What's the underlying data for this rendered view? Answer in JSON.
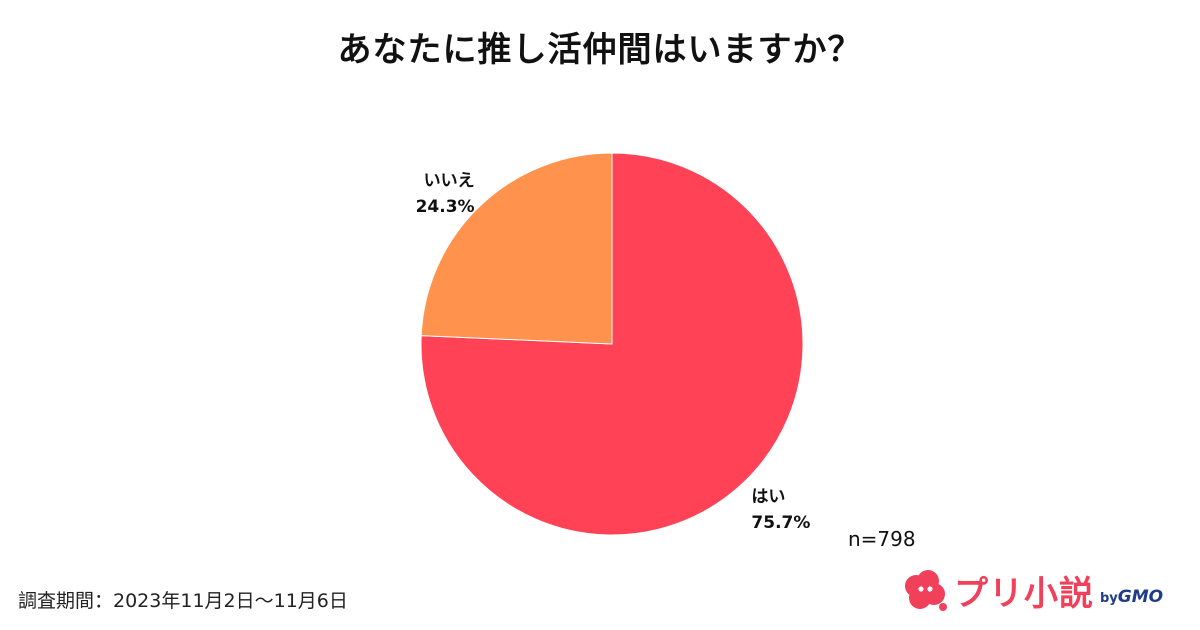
{
  "title": "あなたに推し活仲間はいますか？",
  "sample_size": "n=798",
  "survey_period": "調査期間：2023年11月2日～11月6日",
  "brand": {
    "name": "プリ小説",
    "by_prefix": "by",
    "by_company": "GMO",
    "logo_icon": "cloud-logo-icon",
    "color": "#f0405a"
  },
  "chart_data": {
    "type": "pie",
    "title": "あなたに推し活仲間はいますか？",
    "slices": [
      {
        "label": "はい",
        "value": 75.7,
        "display": "75.7%",
        "color": "#ff4256"
      },
      {
        "label": "いいえ",
        "value": 24.3,
        "display": "24.3%",
        "color": "#ff924c"
      }
    ],
    "start_angle": "12 o'clock",
    "direction": "clockwise"
  }
}
